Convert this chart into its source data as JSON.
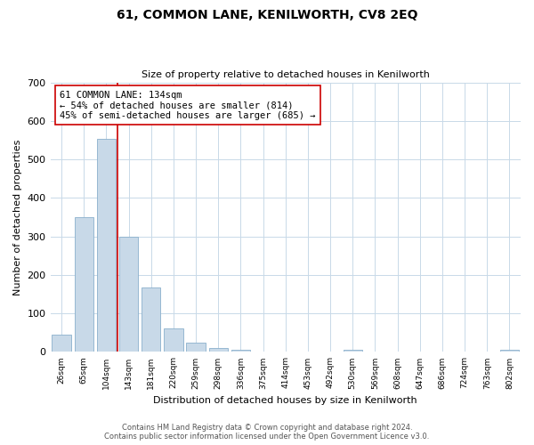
{
  "title": "61, COMMON LANE, KENILWORTH, CV8 2EQ",
  "subtitle": "Size of property relative to detached houses in Kenilworth",
  "xlabel": "Distribution of detached houses by size in Kenilworth",
  "ylabel": "Number of detached properties",
  "footnote1": "Contains HM Land Registry data © Crown copyright and database right 2024.",
  "footnote2": "Contains public sector information licensed under the Open Government Licence v3.0.",
  "bin_labels": [
    "26sqm",
    "65sqm",
    "104sqm",
    "143sqm",
    "181sqm",
    "220sqm",
    "259sqm",
    "298sqm",
    "336sqm",
    "375sqm",
    "414sqm",
    "453sqm",
    "492sqm",
    "530sqm",
    "569sqm",
    "608sqm",
    "647sqm",
    "686sqm",
    "724sqm",
    "763sqm",
    "802sqm"
  ],
  "bar_heights": [
    46,
    350,
    553,
    300,
    168,
    60,
    25,
    10,
    5,
    0,
    0,
    0,
    0,
    5,
    0,
    0,
    0,
    0,
    0,
    0,
    5
  ],
  "bar_color": "#c8d9e8",
  "bar_edge_color": "#8ab0cc",
  "ylim": [
    0,
    700
  ],
  "yticks": [
    0,
    100,
    200,
    300,
    400,
    500,
    600,
    700
  ],
  "property_line_color": "#cc0000",
  "annotation_text": "61 COMMON LANE: 134sqm\n← 54% of detached houses are smaller (814)\n45% of semi-detached houses are larger (685) →",
  "annotation_box_color": "#ffffff",
  "annotation_box_edge": "#cc0000",
  "background_color": "#ffffff",
  "grid_color": "#c8d9e8",
  "title_fontsize": 10,
  "subtitle_fontsize": 8,
  "ylabel_fontsize": 8,
  "xlabel_fontsize": 8
}
